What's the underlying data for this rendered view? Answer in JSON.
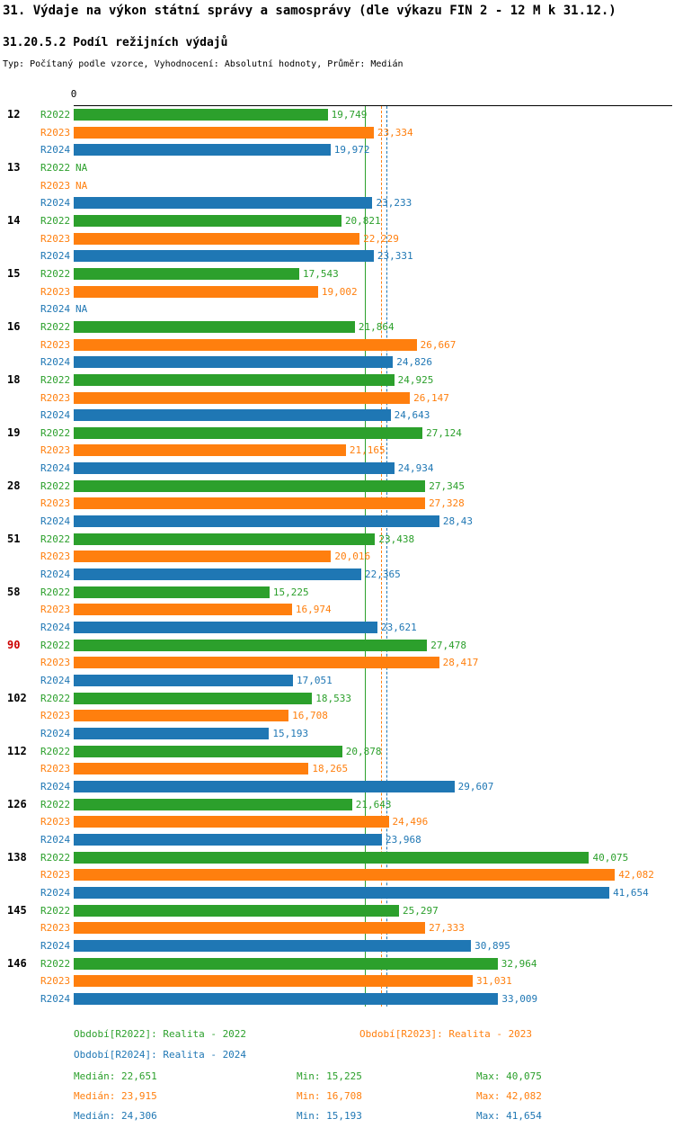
{
  "title": "31. Výdaje na výkon státní správy a samosprávy (dle výkazu FIN 2 - 12 M k 31.12.)",
  "subtitle": "31.20.5.2 Podíl režijních výdajů",
  "meta": "Typ: Počítaný podle vzorce, Vyhodnocení: Absolutní hodnoty, Průměr: Medián",
  "chart_data": {
    "type": "bar",
    "orientation": "horizontal",
    "title": "31.20.5.2 Podíl režijních výdajů",
    "x_axis": {
      "zero_label": "0",
      "min": 0
    },
    "series": [
      "R2022",
      "R2023",
      "R2024"
    ],
    "series_colors": [
      "#2ca02c",
      "#ff7f0e",
      "#1f77b4"
    ],
    "highlight_color": "#cc0000",
    "groups": [
      {
        "id": "12",
        "highlight": false,
        "bars": [
          {
            "value": 19.749,
            "label": "19,749"
          },
          {
            "value": 23.334,
            "label": "23,334"
          },
          {
            "value": 19.972,
            "label": "19,972"
          }
        ]
      },
      {
        "id": "13",
        "highlight": false,
        "bars": [
          {
            "value": null,
            "label": "NA"
          },
          {
            "value": null,
            "label": "NA"
          },
          {
            "value": 23.233,
            "label": "23,233"
          }
        ]
      },
      {
        "id": "14",
        "highlight": false,
        "bars": [
          {
            "value": 20.821,
            "label": "20,821"
          },
          {
            "value": 22.229,
            "label": "22,229"
          },
          {
            "value": 23.331,
            "label": "23,331"
          }
        ]
      },
      {
        "id": "15",
        "highlight": false,
        "bars": [
          {
            "value": 17.543,
            "label": "17,543"
          },
          {
            "value": 19.002,
            "label": "19,002"
          },
          {
            "value": null,
            "label": "NA"
          }
        ]
      },
      {
        "id": "16",
        "highlight": false,
        "bars": [
          {
            "value": 21.864,
            "label": "21,864"
          },
          {
            "value": 26.667,
            "label": "26,667"
          },
          {
            "value": 24.826,
            "label": "24,826"
          }
        ]
      },
      {
        "id": "18",
        "highlight": false,
        "bars": [
          {
            "value": 24.925,
            "label": "24,925"
          },
          {
            "value": 26.147,
            "label": "26,147"
          },
          {
            "value": 24.643,
            "label": "24,643"
          }
        ]
      },
      {
        "id": "19",
        "highlight": false,
        "bars": [
          {
            "value": 27.124,
            "label": "27,124"
          },
          {
            "value": 21.165,
            "label": "21,165"
          },
          {
            "value": 24.934,
            "label": "24,934"
          }
        ]
      },
      {
        "id": "28",
        "highlight": false,
        "bars": [
          {
            "value": 27.345,
            "label": "27,345"
          },
          {
            "value": 27.328,
            "label": "27,328"
          },
          {
            "value": 28.43,
            "label": "28,43"
          }
        ]
      },
      {
        "id": "51",
        "highlight": false,
        "bars": [
          {
            "value": 23.438,
            "label": "23,438"
          },
          {
            "value": 20.016,
            "label": "20,016"
          },
          {
            "value": 22.365,
            "label": "22,365"
          }
        ]
      },
      {
        "id": "58",
        "highlight": false,
        "bars": [
          {
            "value": 15.225,
            "label": "15,225"
          },
          {
            "value": 16.974,
            "label": "16,974"
          },
          {
            "value": 23.621,
            "label": "23,621"
          }
        ]
      },
      {
        "id": "90",
        "highlight": true,
        "bars": [
          {
            "value": 27.478,
            "label": "27,478"
          },
          {
            "value": 28.417,
            "label": "28,417"
          },
          {
            "value": 17.051,
            "label": "17,051"
          }
        ]
      },
      {
        "id": "102",
        "highlight": false,
        "bars": [
          {
            "value": 18.533,
            "label": "18,533"
          },
          {
            "value": 16.708,
            "label": "16,708"
          },
          {
            "value": 15.193,
            "label": "15,193"
          }
        ]
      },
      {
        "id": "112",
        "highlight": false,
        "bars": [
          {
            "value": 20.878,
            "label": "20,878"
          },
          {
            "value": 18.265,
            "label": "18,265"
          },
          {
            "value": 29.607,
            "label": "29,607"
          }
        ]
      },
      {
        "id": "126",
        "highlight": false,
        "bars": [
          {
            "value": 21.643,
            "label": "21,643"
          },
          {
            "value": 24.496,
            "label": "24,496"
          },
          {
            "value": 23.968,
            "label": "23,968"
          }
        ]
      },
      {
        "id": "138",
        "highlight": false,
        "bars": [
          {
            "value": 40.075,
            "label": "40,075"
          },
          {
            "value": 42.082,
            "label": "42,082"
          },
          {
            "value": 41.654,
            "label": "41,654"
          }
        ]
      },
      {
        "id": "145",
        "highlight": false,
        "bars": [
          {
            "value": 25.297,
            "label": "25,297"
          },
          {
            "value": 27.333,
            "label": "27,333"
          },
          {
            "value": 30.895,
            "label": "30,895"
          }
        ]
      },
      {
        "id": "146",
        "highlight": false,
        "bars": [
          {
            "value": 32.964,
            "label": "32,964"
          },
          {
            "value": 31.031,
            "label": "31,031"
          },
          {
            "value": 33.009,
            "label": "33,009"
          }
        ]
      }
    ],
    "median_lines": [
      {
        "series": "R2022",
        "value": 22.651,
        "style": "solid",
        "color": "#2ca02c"
      },
      {
        "series": "R2023",
        "value": 23.915,
        "style": "dashed",
        "color": "#ff7f0e"
      },
      {
        "series": "R2024",
        "value": 24.306,
        "style": "dashed",
        "color": "#1f77b4"
      }
    ]
  },
  "legend": {
    "items": [
      {
        "label": "Období[R2022]: Realita - 2022",
        "color": "#2ca02c"
      },
      {
        "label": "Období[R2023]: Realita - 2023",
        "color": "#ff7f0e"
      },
      {
        "label": "Období[R2024]: Realita - 2024",
        "color": "#1f77b4"
      }
    ]
  },
  "stats": {
    "rows": [
      {
        "median": "Medián: 22,651",
        "min": "Min: 15,225",
        "max": "Max: 40,075",
        "color": "#2ca02c"
      },
      {
        "median": "Medián: 23,915",
        "min": "Min: 16,708",
        "max": "Max: 42,082",
        "color": "#ff7f0e"
      },
      {
        "median": "Medián: 24,306",
        "min": "Min: 15,193",
        "max": "Max: 41,654",
        "color": "#1f77b4"
      }
    ]
  }
}
